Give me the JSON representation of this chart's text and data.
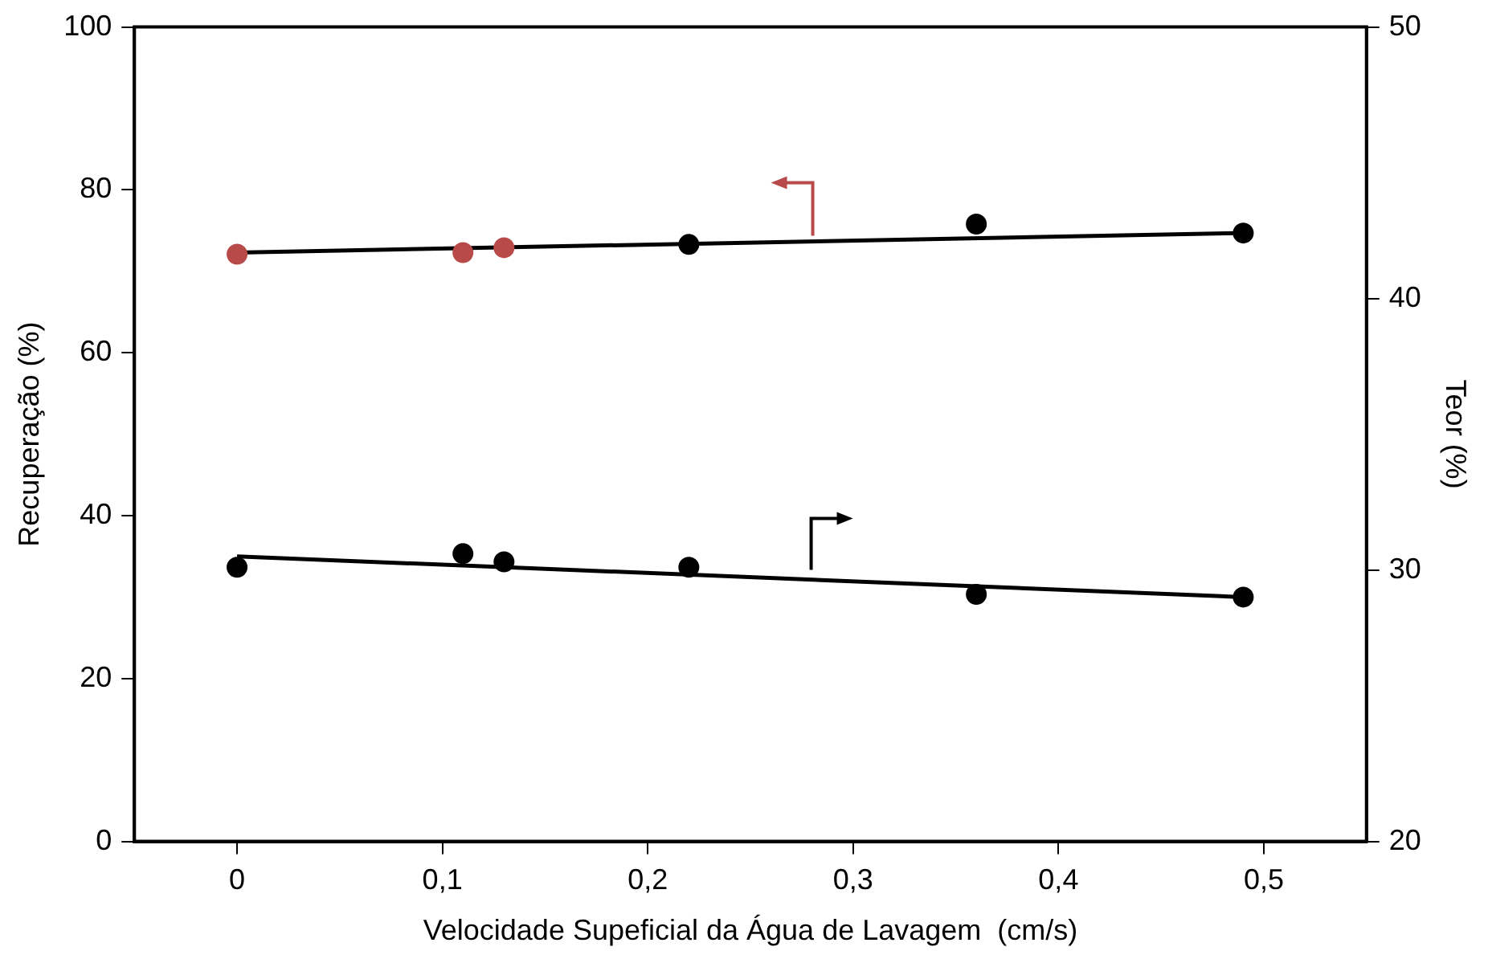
{
  "chart_data": {
    "type": "scatter",
    "xlabel": "Velocidade Supeficial da Água de Lavagem  (cm/s)",
    "ylabel": "Recuperação (%)",
    "y2label": "Teor (%)",
    "xlim": [
      -0.05,
      0.55
    ],
    "xticks": [
      0,
      {
        "value": 0.1,
        "label": "0,1"
      },
      {
        "value": 0.2,
        "label": "0,2"
      },
      {
        "value": 0.3,
        "label": "0,3"
      },
      {
        "value": 0.4,
        "label": "0,4"
      },
      {
        "value": 0.5,
        "label": "0,5"
      }
    ],
    "ylim": [
      0,
      100
    ],
    "yticks": [
      0,
      20,
      40,
      60,
      80,
      100
    ],
    "y2lim": [
      20,
      50
    ],
    "y2ticks": [
      20,
      30,
      40,
      50
    ],
    "grid": false,
    "legend": false,
    "marker": "circle",
    "series": [
      {
        "x": [
          0,
          0.11,
          0.13,
          0.22,
          0.36,
          0.49
        ],
        "values": [
          72.1,
          72.3,
          72.9,
          73.3,
          75.8,
          74.7
        ],
        "colors": [
          "#b84a4a",
          "#b84a4a",
          "#b84a4a",
          "#000000",
          "#000000",
          "#000000"
        ]
      },
      {
        "type": "line",
        "x": [
          0,
          0.49
        ],
        "values": [
          72.3,
          74.7
        ],
        "color": "#000000",
        "marker": "none",
        "line_style": "solid"
      },
      {
        "axis": "y2",
        "x": [
          0,
          0.11,
          0.13,
          0.22,
          0.36,
          0.49
        ],
        "values": [
          30.1,
          30.6,
          30.3,
          30.1,
          29.1,
          29.0
        ],
        "color": "#000000"
      },
      {
        "type": "line",
        "axis": "y2",
        "x": [
          0,
          0.49
        ],
        "values": [
          30.5,
          29.0
        ],
        "color": "#000000",
        "marker": "none",
        "line_style": "solid"
      }
    ]
  }
}
